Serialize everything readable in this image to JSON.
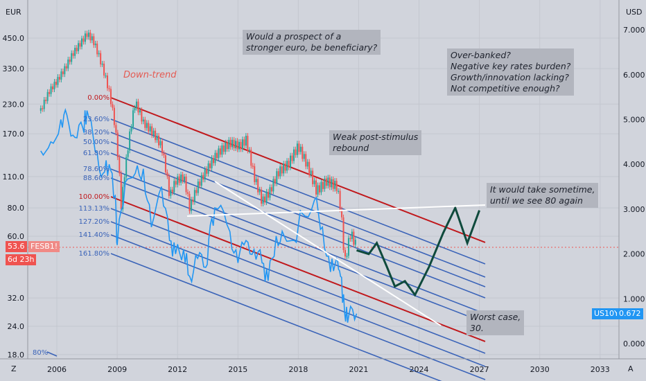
{
  "chart_data": {
    "type": "line",
    "left_axis": {
      "unit": "EUR",
      "ticks": [
        "450.0",
        "330.0",
        "230.0",
        "170.0",
        "110.0",
        "80.0",
        "60.0",
        "32.0",
        "24.0",
        "18.0"
      ]
    },
    "right_axis": {
      "unit": "USD",
      "ticks": [
        "7.000",
        "6.000",
        "5.000",
        "4.000",
        "3.000",
        "2.000",
        "1.000",
        "0.000"
      ]
    },
    "x_ticks": [
      "2006",
      "2009",
      "2012",
      "2015",
      "2018",
      "2021",
      "2024",
      "2027",
      "2030",
      "2033"
    ],
    "series": [
      {
        "name": "FESB1!",
        "color": "#26a69a",
        "values_note": "candlesticks"
      },
      {
        "name": "US10Y",
        "color": "#2196f3"
      }
    ],
    "fib_levels": [
      "0.00%",
      "23.60%",
      "38.20%",
      "50.00%",
      "61.80%",
      "78.60%",
      "88.60%",
      "100.00%",
      "113.13%",
      "127.20%",
      "141.40%",
      "161.80%",
      "80%"
    ],
    "fesb_series": [
      [
        2005.2,
        215
      ],
      [
        2005.6,
        260
      ],
      [
        2006.0,
        290
      ],
      [
        2006.4,
        330
      ],
      [
        2006.8,
        385
      ],
      [
        2007.2,
        430
      ],
      [
        2007.5,
        470
      ],
      [
        2007.8,
        440
      ],
      [
        2008.2,
        350
      ],
      [
        2008.6,
        260
      ],
      [
        2008.9,
        180
      ],
      [
        2009.2,
        80
      ],
      [
        2009.5,
        140
      ],
      [
        2009.9,
        235
      ],
      [
        2010.3,
        190
      ],
      [
        2010.7,
        175
      ],
      [
        2011.2,
        150
      ],
      [
        2011.6,
        90
      ],
      [
        2011.9,
        105
      ],
      [
        2012.3,
        110
      ],
      [
        2012.6,
        80
      ],
      [
        2013.0,
        100
      ],
      [
        2013.5,
        120
      ],
      [
        2014.0,
        140
      ],
      [
        2014.6,
        155
      ],
      [
        2015.1,
        150
      ],
      [
        2015.4,
        160
      ],
      [
        2015.8,
        110
      ],
      [
        2016.2,
        85
      ],
      [
        2016.6,
        95
      ],
      [
        2017.0,
        115
      ],
      [
        2017.5,
        125
      ],
      [
        2018.0,
        150
      ],
      [
        2018.5,
        120
      ],
      [
        2018.9,
        95
      ],
      [
        2019.4,
        105
      ],
      [
        2019.9,
        100
      ],
      [
        2020.1,
        80
      ],
      [
        2020.3,
        45
      ],
      [
        2020.6,
        62
      ],
      [
        2020.9,
        53.6
      ]
    ],
    "us10y_series": [
      [
        2005.2,
        4.3
      ],
      [
        2005.7,
        4.5
      ],
      [
        2006.2,
        5.0
      ],
      [
        2006.5,
        5.1
      ],
      [
        2006.9,
        4.6
      ],
      [
        2007.3,
        4.8
      ],
      [
        2007.5,
        5.2
      ],
      [
        2007.9,
        4.3
      ],
      [
        2008.3,
        3.8
      ],
      [
        2008.6,
        4.0
      ],
      [
        2008.9,
        3.3
      ],
      [
        2009.0,
        2.2
      ],
      [
        2009.4,
        3.6
      ],
      [
        2009.9,
        3.8
      ],
      [
        2010.3,
        3.9
      ],
      [
        2010.7,
        2.6
      ],
      [
        2011.2,
        3.5
      ],
      [
        2011.6,
        2.3
      ],
      [
        2011.9,
        2.0
      ],
      [
        2012.3,
        2.1
      ],
      [
        2012.6,
        1.5
      ],
      [
        2013.0,
        1.9
      ],
      [
        2013.4,
        1.7
      ],
      [
        2013.7,
        2.8
      ],
      [
        2014.0,
        3.0
      ],
      [
        2014.6,
        2.5
      ],
      [
        2015.0,
        1.8
      ],
      [
        2015.4,
        2.3
      ],
      [
        2015.8,
        2.1
      ],
      [
        2016.2,
        1.8
      ],
      [
        2016.5,
        1.4
      ],
      [
        2016.9,
        2.4
      ],
      [
        2017.3,
        2.4
      ],
      [
        2017.8,
        2.3
      ],
      [
        2018.2,
        2.9
      ],
      [
        2018.8,
        3.2
      ],
      [
        2019.2,
        2.6
      ],
      [
        2019.6,
        1.6
      ],
      [
        2019.9,
        1.9
      ],
      [
        2020.1,
        1.5
      ],
      [
        2020.3,
        0.7
      ],
      [
        2020.5,
        0.6
      ],
      [
        2020.9,
        0.67
      ]
    ],
    "projection": [
      [
        2020.9,
        52
      ],
      [
        2021.5,
        50
      ],
      [
        2021.9,
        56
      ],
      [
        2022.4,
        44
      ],
      [
        2022.8,
        36
      ],
      [
        2023.3,
        38
      ],
      [
        2023.8,
        33
      ],
      [
        2024.5,
        44
      ],
      [
        2025.2,
        62
      ],
      [
        2025.8,
        80
      ],
      [
        2026.4,
        56
      ],
      [
        2027.0,
        78
      ]
    ],
    "current": {
      "fesb_price": "53.6",
      "fesb_label": "FESB1!",
      "countdown": "6d 23h",
      "us10y_label": "US10Y",
      "us10y_value": "0.672"
    }
  },
  "annotations": {
    "downtrend": "Down-trend",
    "stronger_euro": "Would a prospect of a\nstronger euro, be beneficiary?",
    "overbanked": "Over-banked?\nNegative key rates burden?\nGrowth/innovation lacking?\nNot competitive enough?",
    "weak_rebound": "Weak post-stimulus\nrebound",
    "take_time": "It would take sometime,\nuntil we see 80 again",
    "worst_case": "Worst case,\n30."
  },
  "ui": {
    "z_label": "Z",
    "a_label": "A"
  },
  "colors": {
    "background": "#d1d4dc",
    "fib_line": "#3a63b8",
    "fib_red": "#c0181c",
    "up_candle": "#26a69a",
    "down_candle": "#ef5350",
    "us10y": "#2196f3",
    "projection": "#0f4a3c"
  }
}
